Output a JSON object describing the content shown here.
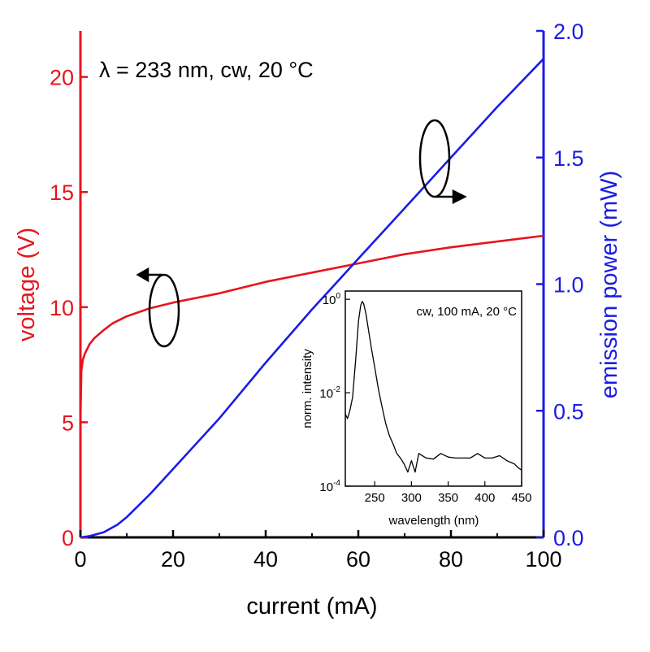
{
  "colors": {
    "voltage": "#e8141c",
    "power": "#1b1be6",
    "axis_x": "#000000",
    "inset": "#000000"
  },
  "chart_data": [
    {
      "type": "line",
      "title": "λ = 233 nm, cw, 20 °C",
      "xlabel": "current (mA)",
      "ylabel_left": "voltage (V)",
      "ylabel_right": "emission power (mW)",
      "xlim": [
        0,
        100
      ],
      "ylim_left": [
        0,
        22
      ],
      "ylim_right": [
        0,
        2.0
      ],
      "x_ticks": [
        "0",
        "20",
        "40",
        "60",
        "80",
        "100"
      ],
      "y_left_ticks": [
        "0",
        "5",
        "10",
        "15",
        "20"
      ],
      "y_right_ticks": [
        "0.0",
        "0.5",
        "1.0",
        "1.5",
        "2.0"
      ],
      "grid": false,
      "series": [
        {
          "name": "voltage",
          "axis": "left",
          "x": [
            0,
            0.2,
            0.5,
            1,
            2,
            3,
            5,
            7,
            10,
            15,
            20,
            30,
            40,
            50,
            60,
            70,
            80,
            90,
            100
          ],
          "y": [
            5.0,
            7.2,
            7.7,
            8.0,
            8.4,
            8.65,
            9.0,
            9.3,
            9.6,
            9.95,
            10.2,
            10.6,
            11.1,
            11.5,
            11.9,
            12.3,
            12.6,
            12.85,
            13.1
          ]
        },
        {
          "name": "emission power",
          "axis": "right",
          "x": [
            0,
            2,
            5,
            8,
            10,
            15,
            20,
            30,
            40,
            50,
            55,
            60,
            70,
            80,
            90,
            100
          ],
          "y": [
            0.0,
            0.005,
            0.02,
            0.05,
            0.08,
            0.17,
            0.27,
            0.47,
            0.69,
            0.9,
            1.0,
            1.1,
            1.3,
            1.5,
            1.7,
            1.89
          ]
        }
      ]
    },
    {
      "type": "line",
      "title": "cw, 100 mA, 20 °C",
      "xlabel": "wavelength (nm)",
      "ylabel": "norm. intensity",
      "xlim": [
        210,
        450
      ],
      "ylim": [
        0.0001,
        1.5
      ],
      "y_scale": "log",
      "x_ticks": [
        "250",
        "300",
        "350",
        "400",
        "450"
      ],
      "y_ticks": [
        {
          "base": "10",
          "exp": "0",
          "value": 1
        },
        {
          "base": "10",
          "exp": "-2",
          "value": 0.01
        },
        {
          "base": "10",
          "exp": "-4",
          "value": 0.0001
        }
      ],
      "series": [
        {
          "x": [
            210,
            213,
            216,
            220,
            224,
            228,
            231,
            233,
            235,
            238,
            242,
            246,
            250,
            255,
            260,
            265,
            270,
            275,
            280,
            285,
            290,
            295,
            300,
            305,
            310,
            320,
            330,
            340,
            350,
            360,
            370,
            380,
            390,
            400,
            410,
            420,
            430,
            440,
            445,
            450
          ],
          "y": [
            0.0035,
            0.0028,
            0.004,
            0.008,
            0.05,
            0.35,
            0.75,
            0.9,
            0.8,
            0.5,
            0.2,
            0.08,
            0.035,
            0.012,
            0.005,
            0.0022,
            0.0012,
            0.0008,
            0.0005,
            0.0004,
            0.0003,
            0.0002,
            0.00035,
            0.0002,
            0.0005,
            0.0004,
            0.00038,
            0.0005,
            0.00042,
            0.0004,
            0.0004,
            0.0004,
            0.0005,
            0.0004,
            0.0004,
            0.00045,
            0.00035,
            0.0003,
            0.00025,
            0.00022
          ]
        }
      ]
    }
  ]
}
